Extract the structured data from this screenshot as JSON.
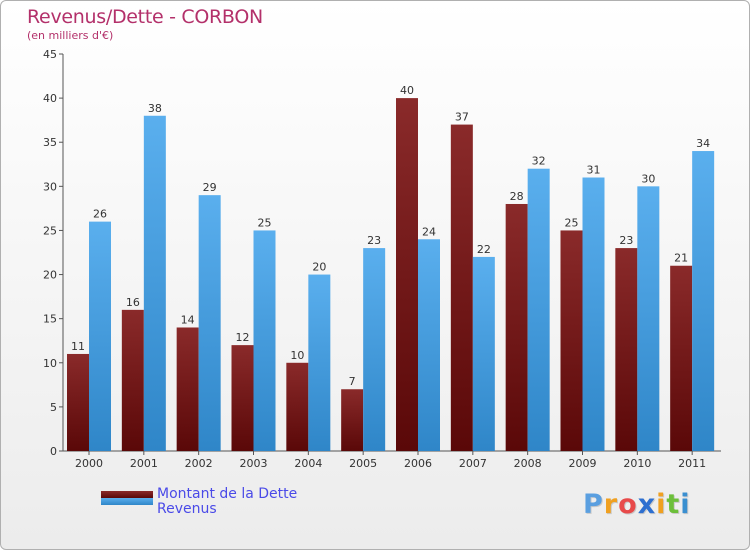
{
  "header": {
    "title": "Revenus/Dette - CORBON",
    "subtitle": "(en milliers d'€)"
  },
  "colors": {
    "dette": "#7a1c1c",
    "revenus": "#4ea6e6",
    "title": "#b3306a",
    "legend_text": "#4a4ae8"
  },
  "chart_data": {
    "type": "bar",
    "title": "Revenus/Dette - CORBON",
    "subtitle": "(en milliers d'€)",
    "xlabel": "",
    "ylabel": "",
    "ylim": [
      0,
      45
    ],
    "yticks": [
      0,
      5,
      10,
      15,
      20,
      25,
      30,
      35,
      40,
      45
    ],
    "grid": false,
    "legend_position": "bottom-left",
    "categories": [
      "2000",
      "2001",
      "2002",
      "2003",
      "2004",
      "2005",
      "2006",
      "2007",
      "2008",
      "2009",
      "2010",
      "2011"
    ],
    "series": [
      {
        "name": "Montant de la Dette",
        "values": [
          11,
          16,
          14,
          12,
          10,
          7,
          40,
          37,
          28,
          25,
          23,
          21
        ]
      },
      {
        "name": "Revenus",
        "values": [
          26,
          38,
          29,
          25,
          20,
          23,
          24,
          22,
          32,
          31,
          30,
          34
        ]
      }
    ]
  },
  "legend": {
    "items": [
      {
        "label": "Montant de la Dette"
      },
      {
        "label": "Revenus"
      }
    ]
  },
  "brand": {
    "letters": [
      "P",
      "r",
      "o",
      "x",
      "i",
      "t",
      "i"
    ],
    "colors": [
      "#5a9fe0",
      "#f0a020",
      "#e84a4a",
      "#2d6fd0",
      "#f0a020",
      "#6cbf3a",
      "#3a8fd0"
    ]
  }
}
